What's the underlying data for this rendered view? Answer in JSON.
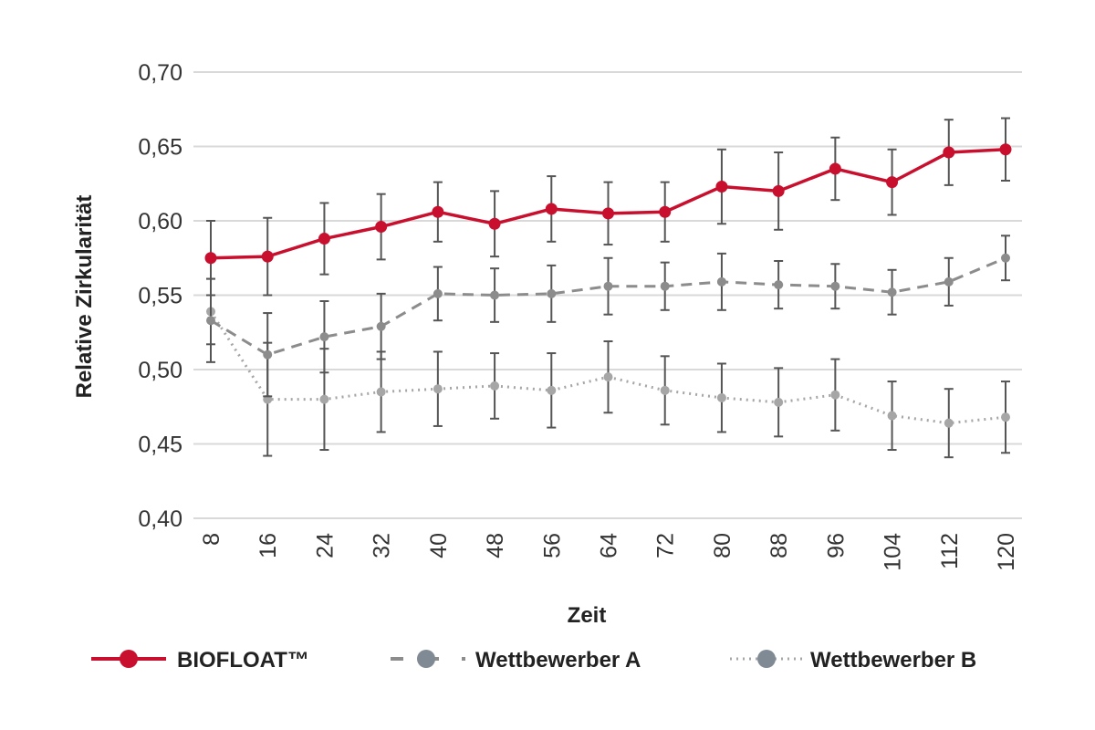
{
  "chart_data": {
    "type": "line",
    "x": [
      8,
      16,
      24,
      32,
      40,
      48,
      56,
      64,
      72,
      80,
      88,
      96,
      104,
      112,
      120
    ],
    "xlabel": "Zeit",
    "ylabel": "Relative Zirkularität",
    "ylim": [
      0.4,
      0.7
    ],
    "yticks": [
      "0,40",
      "0,45",
      "0,50",
      "0,55",
      "0,60",
      "0,65",
      "0,70"
    ],
    "xticks": [
      "8",
      "16",
      "24",
      "32",
      "40",
      "48",
      "56",
      "64",
      "72",
      "80",
      "88",
      "96",
      "104",
      "112",
      "120"
    ],
    "grid": "horizontal",
    "legend_position": "bottom",
    "series": [
      {
        "name": "BIOFLOAT™",
        "color": "#c8102e",
        "line_style": "solid",
        "values": [
          0.575,
          0.576,
          0.588,
          0.596,
          0.606,
          0.598,
          0.608,
          0.605,
          0.606,
          0.623,
          0.62,
          0.635,
          0.626,
          0.646,
          0.648
        ],
        "errors": [
          0.025,
          0.026,
          0.024,
          0.022,
          0.02,
          0.022,
          0.022,
          0.021,
          0.02,
          0.025,
          0.026,
          0.021,
          0.022,
          0.022,
          0.021
        ]
      },
      {
        "name": "Wettbewerber A",
        "color": "#8c8c8c",
        "line_style": "dashed",
        "values": [
          0.533,
          0.51,
          0.522,
          0.529,
          0.551,
          0.55,
          0.551,
          0.556,
          0.556,
          0.559,
          0.557,
          0.556,
          0.552,
          0.559,
          0.575
        ],
        "errors": [
          0.028,
          0.028,
          0.024,
          0.022,
          0.018,
          0.018,
          0.019,
          0.019,
          0.016,
          0.019,
          0.016,
          0.015,
          0.015,
          0.016,
          0.015
        ]
      },
      {
        "name": "Wettbewerber B",
        "color": "#a6a6a6",
        "line_style": "dotted",
        "values": [
          0.539,
          0.48,
          0.48,
          0.485,
          0.487,
          0.489,
          0.486,
          0.495,
          0.486,
          0.481,
          0.478,
          0.483,
          0.469,
          0.464,
          0.468
        ],
        "errors": [
          0.022,
          0.038,
          0.034,
          0.027,
          0.025,
          0.022,
          0.025,
          0.024,
          0.023,
          0.023,
          0.023,
          0.024,
          0.023,
          0.023,
          0.024
        ]
      }
    ]
  },
  "legend": {
    "items": [
      {
        "label": "BIOFLOAT™",
        "color": "#c8102e",
        "marker_color": "#c8102e",
        "line_style": "solid"
      },
      {
        "label": "Wettbewerber A",
        "color": "#8c8c8c",
        "marker_color": "#7f8a94",
        "line_style": "dashed"
      },
      {
        "label": "Wettbewerber B",
        "color": "#a6a6a6",
        "marker_color": "#7f8a94",
        "line_style": "dotted"
      }
    ]
  },
  "colors": {
    "grid": "#d9d9d9",
    "error_bar": "#555555",
    "text": "#222222"
  }
}
